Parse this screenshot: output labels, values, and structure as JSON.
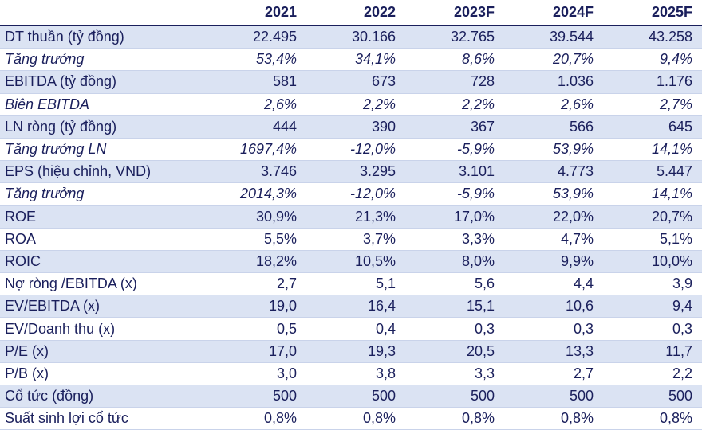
{
  "table": {
    "header": [
      "",
      "2021",
      "2022",
      "2023F",
      "2024F",
      "2025F"
    ],
    "rows": [
      {
        "label": "DT thuần (tỷ đồng)",
        "values": [
          "22.495",
          "30.166",
          "32.765",
          "39.544",
          "43.258"
        ],
        "italic": false,
        "shaded": true
      },
      {
        "label": "Tăng trưởng",
        "values": [
          "53,4%",
          "34,1%",
          "8,6%",
          "20,7%",
          "9,4%"
        ],
        "italic": true,
        "shaded": false
      },
      {
        "label": "EBITDA (tỷ đồng)",
        "values": [
          "581",
          "673",
          "728",
          "1.036",
          "1.176"
        ],
        "italic": false,
        "shaded": true
      },
      {
        "label": "Biên EBITDA",
        "values": [
          "2,6%",
          "2,2%",
          "2,2%",
          "2,6%",
          "2,7%"
        ],
        "italic": true,
        "shaded": false
      },
      {
        "label": "LN ròng (tỷ đồng)",
        "values": [
          "444",
          "390",
          "367",
          "566",
          "645"
        ],
        "italic": false,
        "shaded": true
      },
      {
        "label": "Tăng trưởng LN",
        "values": [
          "1697,4%",
          "-12,0%",
          "-5,9%",
          "53,9%",
          "14,1%"
        ],
        "italic": true,
        "shaded": false
      },
      {
        "label": "EPS (hiệu chỉnh, VND)",
        "values": [
          "3.746",
          "3.295",
          "3.101",
          "4.773",
          "5.447"
        ],
        "italic": false,
        "shaded": true
      },
      {
        "label": "Tăng trưởng",
        "values": [
          "2014,3%",
          "-12,0%",
          "-5,9%",
          "53,9%",
          "14,1%"
        ],
        "italic": true,
        "shaded": false
      },
      {
        "label": "ROE",
        "values": [
          "30,9%",
          "21,3%",
          "17,0%",
          "22,0%",
          "20,7%"
        ],
        "italic": false,
        "shaded": true
      },
      {
        "label": "ROA",
        "values": [
          "5,5%",
          "3,7%",
          "3,3%",
          "4,7%",
          "5,1%"
        ],
        "italic": false,
        "shaded": false
      },
      {
        "label": "ROIC",
        "values": [
          "18,2%",
          "10,5%",
          "8,0%",
          "9,9%",
          "10,0%"
        ],
        "italic": false,
        "shaded": true
      },
      {
        "label": "Nợ ròng /EBITDA (x)",
        "values": [
          "2,7",
          "5,1",
          "5,6",
          "4,4",
          "3,9"
        ],
        "italic": false,
        "shaded": false
      },
      {
        "label": "EV/EBITDA (x)",
        "values": [
          "19,0",
          "16,4",
          "15,1",
          "10,6",
          "9,4"
        ],
        "italic": false,
        "shaded": true
      },
      {
        "label": "EV/Doanh thu (x)",
        "values": [
          "0,5",
          "0,4",
          "0,3",
          "0,3",
          "0,3"
        ],
        "italic": false,
        "shaded": false
      },
      {
        "label": "P/E (x)",
        "values": [
          "17,0",
          "19,3",
          "20,5",
          "13,3",
          "11,7"
        ],
        "italic": false,
        "shaded": true
      },
      {
        "label": "P/B (x)",
        "values": [
          "3,0",
          "3,8",
          "3,3",
          "2,7",
          "2,2"
        ],
        "italic": false,
        "shaded": false
      },
      {
        "label": "Cổ tức (đồng)",
        "values": [
          "500",
          "500",
          "500",
          "500",
          "500"
        ],
        "italic": false,
        "shaded": true
      },
      {
        "label": "Suất sinh lợi cổ tức",
        "values": [
          "0,8%",
          "0,8%",
          "0,8%",
          "0,8%",
          "0,8%"
        ],
        "italic": false,
        "shaded": false
      }
    ]
  }
}
